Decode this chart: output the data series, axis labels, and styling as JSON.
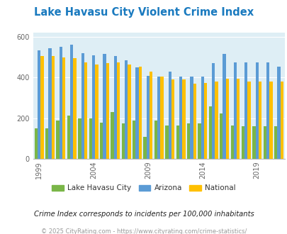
{
  "title": "Lake Havasu City Violent Crime Index",
  "title_color": "#1a7abf",
  "subtitle": "Crime Index corresponds to incidents per 100,000 inhabitants",
  "footer": "© 2025 CityRating.com - https://www.cityrating.com/crime-statistics/",
  "years": [
    1999,
    2000,
    2001,
    2002,
    2003,
    2004,
    2005,
    2006,
    2007,
    2008,
    2009,
    2010,
    2011,
    2012,
    2013,
    2014,
    2015,
    2016,
    2017,
    2018,
    2019,
    2020,
    2021
  ],
  "lake_havasu": [
    150,
    150,
    190,
    215,
    200,
    200,
    180,
    230,
    175,
    190,
    110,
    190,
    165,
    165,
    175,
    175,
    260,
    225,
    165,
    160,
    160,
    160,
    160
  ],
  "arizona": [
    535,
    545,
    550,
    560,
    520,
    510,
    515,
    505,
    485,
    450,
    410,
    405,
    430,
    405,
    405,
    405,
    470,
    515,
    475,
    475,
    475,
    475,
    455
  ],
  "national": [
    505,
    505,
    500,
    495,
    475,
    465,
    470,
    475,
    465,
    455,
    430,
    405,
    390,
    390,
    370,
    375,
    380,
    395,
    395,
    380,
    380,
    380,
    380
  ],
  "city_color": "#7ab648",
  "arizona_color": "#5b9bd5",
  "national_color": "#ffc000",
  "bg_color": "#deeef5",
  "ylim": [
    0,
    620
  ],
  "yticks": [
    0,
    200,
    400,
    600
  ],
  "xlabel_years": [
    1999,
    2004,
    2009,
    2014,
    2019
  ],
  "bar_width": 0.28
}
